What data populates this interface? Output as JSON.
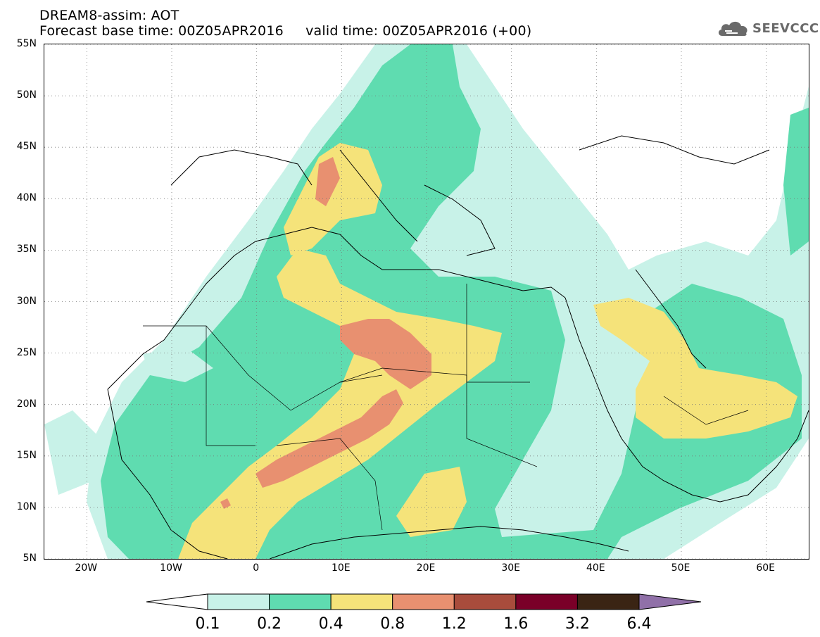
{
  "header": {
    "line1": "DREAM8-assim: AOT",
    "line2": "Forecast base time: 00Z05APR2016     valid time: 00Z05APR2016 (+00)"
  },
  "logo": {
    "text": "SEEVCCC",
    "icon": "cloud-icon",
    "color": "#6a6a6a"
  },
  "map": {
    "lon_range": [
      -25,
      65
    ],
    "lat_range": [
      5,
      55
    ],
    "lat_labels": [
      "5N",
      "10N",
      "15N",
      "20N",
      "25N",
      "30N",
      "35N",
      "40N",
      "45N",
      "50N",
      "55N"
    ],
    "lat_values": [
      5,
      10,
      15,
      20,
      25,
      30,
      35,
      40,
      45,
      50,
      55
    ],
    "lon_labels": [
      "20W",
      "10W",
      "0",
      "10E",
      "20E",
      "30E",
      "40E",
      "50E",
      "60E"
    ],
    "lon_values": [
      -20,
      -10,
      0,
      10,
      20,
      30,
      40,
      50,
      60
    ],
    "gridlines": "dotted"
  },
  "colorbar": {
    "levels": [
      "0.1",
      "0.2",
      "0.4",
      "0.8",
      "1.2",
      "1.6",
      "3.2",
      "6.4"
    ],
    "colors": [
      "#ffffff",
      "#c8f2e8",
      "#5fdcb0",
      "#f5e37a",
      "#e89070",
      "#a84c3c",
      "#7a0028",
      "#3a2414",
      "#9070a8"
    ]
  }
}
